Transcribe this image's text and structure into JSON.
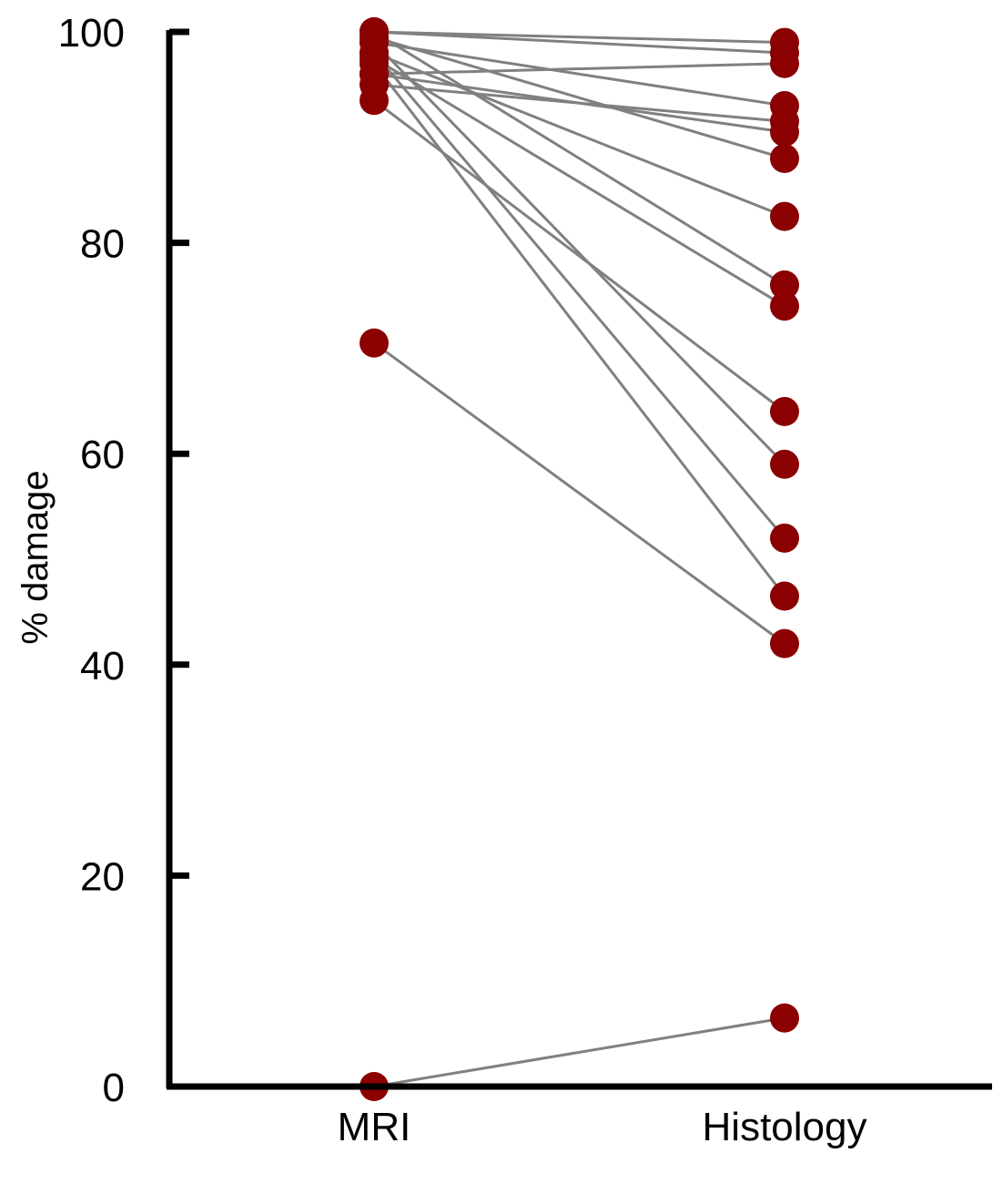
{
  "chart_data": {
    "type": "line",
    "title": "",
    "xlabel": "",
    "ylabel": "% damage",
    "categories": [
      "MRI",
      "Histology"
    ],
    "ylim": [
      0,
      100
    ],
    "yticks": [
      0,
      20,
      40,
      60,
      80,
      100
    ],
    "grid": false,
    "legend": "none",
    "colors": {
      "point": "#8b0000",
      "line": "#808080",
      "axis": "#000000"
    },
    "pairs": [
      {
        "mri": 100,
        "histology": 99
      },
      {
        "mri": 100,
        "histology": 98
      },
      {
        "mri": 99,
        "histology": 93
      },
      {
        "mri": 98,
        "histology": 82.5
      },
      {
        "mri": 100,
        "histology": 76
      },
      {
        "mri": 96,
        "histology": 97
      },
      {
        "mri": 95,
        "histology": 91.5
      },
      {
        "mri": 96,
        "histology": 90.5
      },
      {
        "mri": 99.5,
        "histology": 88
      },
      {
        "mri": 97.5,
        "histology": 74
      },
      {
        "mri": 93.5,
        "histology": 64
      },
      {
        "mri": 99,
        "histology": 59
      },
      {
        "mri": 98,
        "histology": 52
      },
      {
        "mri": 97,
        "histology": 46.5
      },
      {
        "mri": 70.5,
        "histology": 42
      },
      {
        "mri": 0,
        "histology": 6.5
      }
    ]
  }
}
